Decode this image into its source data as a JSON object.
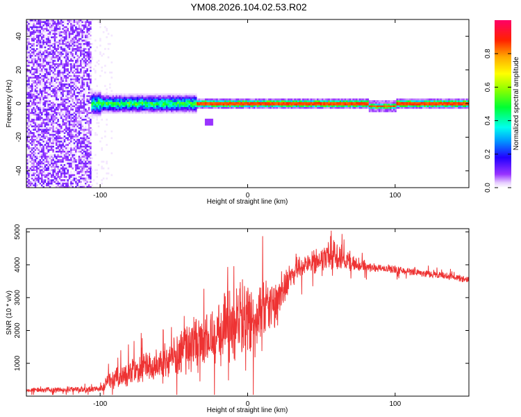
{
  "chart_data": [
    {
      "type": "heatmap",
      "title": "YM08.2026.104.02.53.R02",
      "xlabel": "Height of straight line (km)",
      "ylabel": "Frequency (Hz)",
      "xlim": [
        -150,
        150
      ],
      "ylim": [
        -50,
        50
      ],
      "xticks": [
        -100,
        0,
        100
      ],
      "yticks": [
        -40,
        -20,
        0,
        20,
        40
      ],
      "colorbar": {
        "label": "Normalized spectral amplitude",
        "range": [
          0,
          1
        ],
        "ticks": [
          "0.0",
          "0.2",
          "0.4",
          "0.6",
          "0.8"
        ]
      },
      "regions": [
        {
          "name": "broadband noise",
          "x_range": [
            -150,
            -107
          ],
          "f_range": [
            -50,
            50
          ],
          "amplitude": 0.05
        },
        {
          "name": "weak scatter",
          "x_range": [
            -107,
            -90
          ],
          "f_range": [
            -50,
            50
          ],
          "amplitude": 0.02
        },
        {
          "name": "onset band",
          "x_range": [
            -107,
            -100
          ],
          "f_range": [
            -6,
            6
          ],
          "amplitude": 0.4
        },
        {
          "name": "noisy signal band",
          "x_range": [
            -100,
            -35
          ],
          "f_range": [
            -4,
            4
          ],
          "amplitude": 0.35
        },
        {
          "name": "stable tone",
          "x_range": [
            -35,
            150
          ],
          "f_center": 0,
          "amplitude": 0.9
        },
        {
          "name": "blob",
          "x_range": [
            -30,
            -25
          ],
          "f_center": -11,
          "amplitude": 0.08
        }
      ]
    },
    {
      "type": "line",
      "xlabel": "Height of straight line (km)",
      "ylabel": "SNR (10 * v/v)",
      "xlim": [
        -150,
        150
      ],
      "ylim": [
        0,
        5100
      ],
      "xticks": [
        -100,
        0,
        100
      ],
      "yticks": [
        1000,
        2000,
        3000,
        4000,
        5000
      ],
      "color": "#ee3333",
      "series": [
        {
          "name": "SNR",
          "x": [
            -150,
            -100,
            -95,
            -80,
            -60,
            -40,
            -20,
            -5,
            5,
            20,
            30,
            45,
            60,
            75,
            90,
            120,
            150
          ],
          "y": [
            180,
            220,
            450,
            700,
            1000,
            1500,
            2000,
            2400,
            2200,
            2900,
            3800,
            4100,
            4300,
            4000,
            3900,
            3750,
            3550
          ],
          "spread": [
            80,
            120,
            300,
            500,
            700,
            900,
            1200,
            1400,
            1300,
            900,
            500,
            450,
            500,
            250,
            150,
            130,
            120
          ]
        }
      ]
    }
  ]
}
